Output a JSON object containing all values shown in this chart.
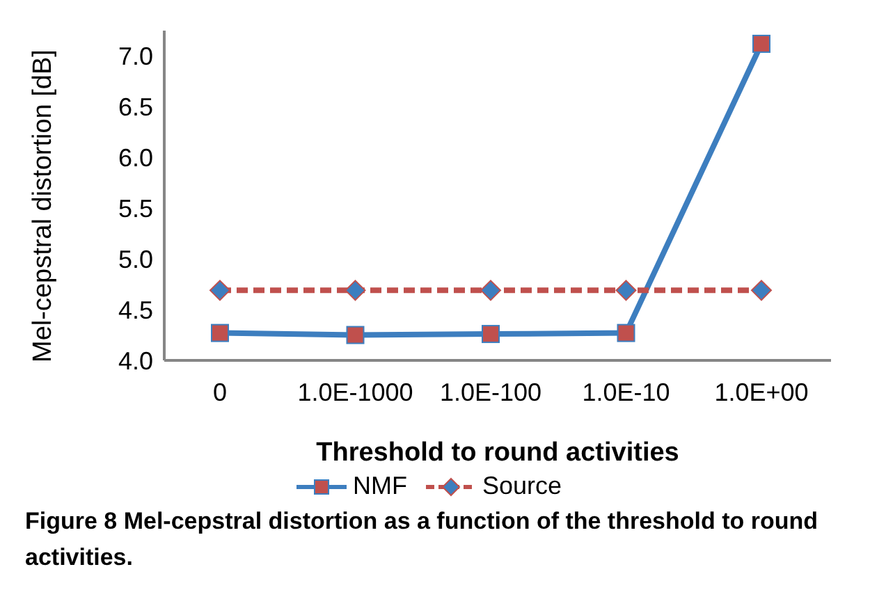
{
  "chart_data": {
    "type": "line",
    "xlabel": "Threshold to round activities",
    "ylabel": "Mel-cepstral distortion [dB]",
    "categories": [
      "0",
      "1.0E-1000",
      "1.0E-100",
      "1.0E-10",
      "1.0E+00"
    ],
    "series": [
      {
        "name": "NMF",
        "color": "#3d7ebf",
        "marker": "square",
        "line_style": "solid",
        "values": [
          4.27,
          4.25,
          4.26,
          4.27,
          7.12
        ]
      },
      {
        "name": "Source",
        "color": "#c0504d",
        "marker": "diamond",
        "line_style": "dashed",
        "values": [
          4.69,
          4.69,
          4.69,
          4.69,
          4.69
        ]
      }
    ],
    "ylim": [
      4,
      7.25
    ],
    "yticks": [
      {
        "value": 4,
        "label": "4.0"
      },
      {
        "value": 4.5,
        "label": "4.5"
      },
      {
        "value": 5,
        "label": "5.0"
      },
      {
        "value": 5.5,
        "label": "5.5"
      },
      {
        "value": 6,
        "label": "6.0"
      },
      {
        "value": 6.5,
        "label": "6.5"
      },
      {
        "value": 7,
        "label": "7.0"
      }
    ],
    "grid": false,
    "legend": "bottom",
    "annotations": [
      "Figure 8 Mel-cepstral distortion as a function of the threshold to round activities."
    ]
  }
}
